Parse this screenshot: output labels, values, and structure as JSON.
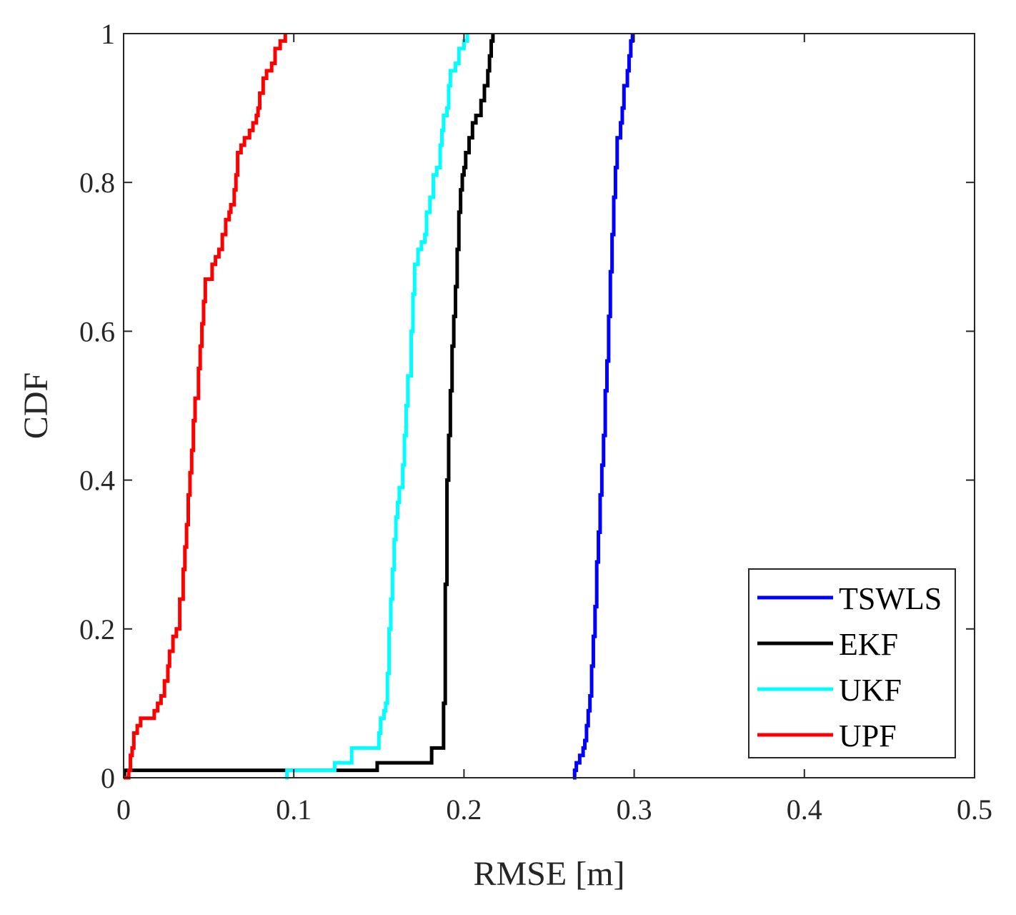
{
  "chart_data": {
    "type": "line",
    "xlabel": "RMSE [m]",
    "ylabel": "CDF",
    "xlim": [
      0,
      0.5
    ],
    "ylim": [
      0,
      1
    ],
    "x_ticks": [
      0,
      0.1,
      0.2,
      0.3,
      0.4,
      0.5
    ],
    "x_tick_labels": [
      "0",
      "0.1",
      "0.2",
      "0.3",
      "0.4",
      "0.5"
    ],
    "y_ticks": [
      0,
      0.2,
      0.4,
      0.6,
      0.8,
      1
    ],
    "y_tick_labels": [
      "0",
      "0.2",
      "0.4",
      "0.6",
      "0.8",
      "1"
    ],
    "grid": false,
    "legend_position": "bottom-right",
    "series": [
      {
        "name": "TSWLS",
        "color": "#0000ff",
        "points": [
          [
            0.264,
            0
          ],
          [
            0.265,
            0.01
          ],
          [
            0.266,
            0.02
          ],
          [
            0.268,
            0.03
          ],
          [
            0.27,
            0.04
          ],
          [
            0.271,
            0.05
          ],
          [
            0.272,
            0.07
          ],
          [
            0.273,
            0.09
          ],
          [
            0.274,
            0.11
          ],
          [
            0.275,
            0.15
          ],
          [
            0.276,
            0.19
          ],
          [
            0.277,
            0.23
          ],
          [
            0.278,
            0.29
          ],
          [
            0.279,
            0.33
          ],
          [
            0.28,
            0.38
          ],
          [
            0.281,
            0.42
          ],
          [
            0.282,
            0.46
          ],
          [
            0.283,
            0.52
          ],
          [
            0.284,
            0.56
          ],
          [
            0.285,
            0.62
          ],
          [
            0.286,
            0.68
          ],
          [
            0.287,
            0.73
          ],
          [
            0.288,
            0.78
          ],
          [
            0.289,
            0.82
          ],
          [
            0.29,
            0.86
          ],
          [
            0.292,
            0.88
          ],
          [
            0.293,
            0.9
          ],
          [
            0.294,
            0.93
          ],
          [
            0.296,
            0.95
          ],
          [
            0.297,
            0.97
          ],
          [
            0.298,
            0.99
          ],
          [
            0.299,
            1
          ]
        ]
      },
      {
        "name": "EKF",
        "color": "#000000",
        "points": [
          [
            0,
            0
          ],
          [
            0.0005,
            0.01
          ],
          [
            0.148,
            0.01
          ],
          [
            0.149,
            0.02
          ],
          [
            0.18,
            0.02
          ],
          [
            0.181,
            0.04
          ],
          [
            0.187,
            0.04
          ],
          [
            0.188,
            0.1
          ],
          [
            0.189,
            0.26
          ],
          [
            0.19,
            0.4
          ],
          [
            0.191,
            0.46
          ],
          [
            0.192,
            0.52
          ],
          [
            0.193,
            0.58
          ],
          [
            0.194,
            0.62
          ],
          [
            0.195,
            0.66
          ],
          [
            0.196,
            0.71
          ],
          [
            0.197,
            0.76
          ],
          [
            0.198,
            0.79
          ],
          [
            0.199,
            0.81
          ],
          [
            0.2,
            0.82
          ],
          [
            0.201,
            0.84
          ],
          [
            0.203,
            0.86
          ],
          [
            0.205,
            0.88
          ],
          [
            0.207,
            0.89
          ],
          [
            0.21,
            0.91
          ],
          [
            0.212,
            0.93
          ],
          [
            0.214,
            0.95
          ],
          [
            0.215,
            0.97
          ],
          [
            0.216,
            0.99
          ],
          [
            0.217,
            1
          ]
        ]
      },
      {
        "name": "UKF",
        "color": "#00ffff",
        "points": [
          [
            0.095,
            0
          ],
          [
            0.096,
            0.01
          ],
          [
            0.123,
            0.01
          ],
          [
            0.124,
            0.02
          ],
          [
            0.133,
            0.02
          ],
          [
            0.134,
            0.04
          ],
          [
            0.149,
            0.04
          ],
          [
            0.15,
            0.06
          ],
          [
            0.151,
            0.08
          ],
          [
            0.153,
            0.09
          ],
          [
            0.154,
            0.1
          ],
          [
            0.155,
            0.14
          ],
          [
            0.156,
            0.2
          ],
          [
            0.157,
            0.24
          ],
          [
            0.158,
            0.28
          ],
          [
            0.159,
            0.32
          ],
          [
            0.16,
            0.35
          ],
          [
            0.161,
            0.37
          ],
          [
            0.162,
            0.39
          ],
          [
            0.164,
            0.42
          ],
          [
            0.165,
            0.46
          ],
          [
            0.166,
            0.5
          ],
          [
            0.167,
            0.54
          ],
          [
            0.169,
            0.6
          ],
          [
            0.17,
            0.65
          ],
          [
            0.171,
            0.69
          ],
          [
            0.173,
            0.71
          ],
          [
            0.175,
            0.72
          ],
          [
            0.177,
            0.73
          ],
          [
            0.178,
            0.76
          ],
          [
            0.18,
            0.78
          ],
          [
            0.182,
            0.81
          ],
          [
            0.184,
            0.82
          ],
          [
            0.186,
            0.85
          ],
          [
            0.187,
            0.87
          ],
          [
            0.188,
            0.89
          ],
          [
            0.19,
            0.9
          ],
          [
            0.191,
            0.93
          ],
          [
            0.192,
            0.95
          ],
          [
            0.195,
            0.96
          ],
          [
            0.197,
            0.98
          ],
          [
            0.2,
            0.99
          ],
          [
            0.202,
            1
          ]
        ]
      },
      {
        "name": "UPF",
        "color": "#ff0000",
        "points": [
          [
            0,
            0
          ],
          [
            0.003,
            0.01
          ],
          [
            0.004,
            0.03
          ],
          [
            0.005,
            0.04
          ],
          [
            0.006,
            0.06
          ],
          [
            0.008,
            0.07
          ],
          [
            0.01,
            0.08
          ],
          [
            0.015,
            0.08
          ],
          [
            0.018,
            0.09
          ],
          [
            0.02,
            0.1
          ],
          [
            0.022,
            0.11
          ],
          [
            0.024,
            0.13
          ],
          [
            0.026,
            0.15
          ],
          [
            0.027,
            0.17
          ],
          [
            0.029,
            0.19
          ],
          [
            0.031,
            0.2
          ],
          [
            0.033,
            0.24
          ],
          [
            0.035,
            0.28
          ],
          [
            0.036,
            0.31
          ],
          [
            0.037,
            0.34
          ],
          [
            0.038,
            0.38
          ],
          [
            0.039,
            0.41
          ],
          [
            0.04,
            0.44
          ],
          [
            0.041,
            0.48
          ],
          [
            0.042,
            0.51
          ],
          [
            0.044,
            0.55
          ],
          [
            0.045,
            0.58
          ],
          [
            0.046,
            0.61
          ],
          [
            0.047,
            0.64
          ],
          [
            0.048,
            0.67
          ],
          [
            0.05,
            0.67
          ],
          [
            0.052,
            0.69
          ],
          [
            0.054,
            0.7
          ],
          [
            0.056,
            0.71
          ],
          [
            0.058,
            0.73
          ],
          [
            0.06,
            0.75
          ],
          [
            0.062,
            0.76
          ],
          [
            0.063,
            0.77
          ],
          [
            0.065,
            0.79
          ],
          [
            0.066,
            0.81
          ],
          [
            0.067,
            0.84
          ],
          [
            0.069,
            0.85
          ],
          [
            0.071,
            0.86
          ],
          [
            0.074,
            0.87
          ],
          [
            0.076,
            0.88
          ],
          [
            0.078,
            0.89
          ],
          [
            0.079,
            0.9
          ],
          [
            0.08,
            0.92
          ],
          [
            0.082,
            0.94
          ],
          [
            0.084,
            0.95
          ],
          [
            0.087,
            0.96
          ],
          [
            0.089,
            0.98
          ],
          [
            0.092,
            0.99
          ],
          [
            0.095,
            1
          ]
        ]
      }
    ]
  }
}
